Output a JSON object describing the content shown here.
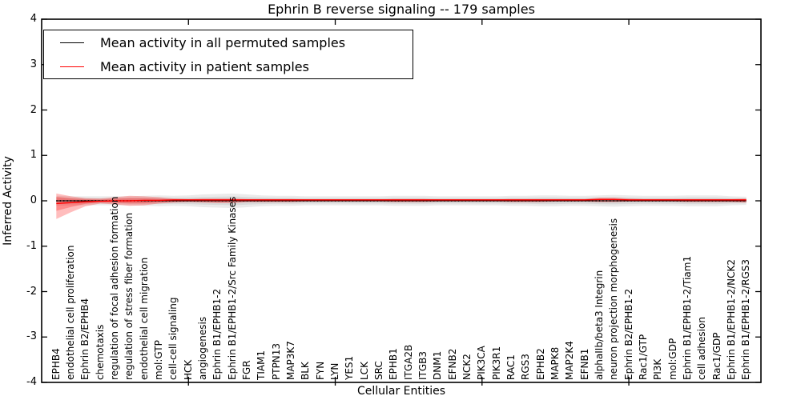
{
  "chart_data": {
    "type": "line",
    "title": "Ephrin B reverse signaling -- 179 samples",
    "xlabel": "Cellular Entities",
    "ylabel": "Inferred Activity",
    "ylim": [
      -4,
      4
    ],
    "xlim_units": [
      0,
      49
    ],
    "grid": false,
    "legend_position": "upper left",
    "y_ticks": [
      4,
      3,
      2,
      1,
      0,
      -1,
      -2,
      -3,
      -4
    ],
    "y_tick_labels": [
      "4",
      "3",
      "2",
      "1",
      "0",
      "-1",
      "-2",
      "-3",
      "-4"
    ],
    "x_major_ticks_units": [
      10,
      20,
      30,
      40
    ],
    "categories": [
      "EPHB4",
      "endothelial cell proliferation",
      "Ephrin B2/EPHB4",
      "chemotaxis",
      "regulation of focal adhesion formation",
      "regulation of stress fiber formation",
      "endothelial cell migration",
      "mol:GTP",
      "cell-cell signaling",
      "HCK",
      "angiogenesis",
      "Ephrin B1/EPHB1-2",
      "Ephrin B1/EPHB1-2/Src Family Kinases",
      "FGR",
      "TIAM1",
      "PTPN13",
      "MAP3K7",
      "BLK",
      "FYN",
      "LYN",
      "YES1",
      "LCK",
      "SRC",
      "EPHB1",
      "ITGA2B",
      "ITGB3",
      "DNM1",
      "EFNB2",
      "NCK2",
      "PIK3CA",
      "PIK3R1",
      "RAC1",
      "RGS3",
      "EPHB2",
      "MAPK8",
      "MAP2K4",
      "EFNB1",
      "alphaIIb/beta3 Integrin",
      "neuron projection morphogenesis",
      "Ephrin B2/EPHB1-2",
      "Rac1/GTP",
      "PI3K",
      "mol:GDP",
      "Ephrin B1/EPHB1-2/Tiam1",
      "cell adhesion",
      "Rac1/GDP",
      "Ephrin B1/EPHB1-2/NCK2",
      "Ephrin B1/EPHB1-2/RGS3"
    ],
    "series": [
      {
        "name": "Mean activity in all permuted samples",
        "color": "#000000",
        "band_color": "#999999",
        "values": [
          0,
          0,
          0,
          0,
          0,
          0,
          0,
          0,
          0,
          0,
          0,
          0,
          0,
          0,
          0,
          0,
          0,
          0,
          0,
          0,
          0,
          0,
          0,
          0,
          0,
          0,
          0,
          0,
          0,
          0,
          0,
          0,
          0,
          0,
          0,
          0,
          0,
          0,
          0,
          0,
          0,
          0,
          0,
          0,
          0,
          0,
          0,
          0
        ],
        "band_upper": [
          0.11,
          0.1,
          0.1,
          0.1,
          0.1,
          0.1,
          0.11,
          0.12,
          0.11,
          0.12,
          0.14,
          0.15,
          0.16,
          0.14,
          0.12,
          0.11,
          0.11,
          0.1,
          0.1,
          0.1,
          0.1,
          0.1,
          0.1,
          0.11,
          0.11,
          0.11,
          0.1,
          0.1,
          0.1,
          0.1,
          0.1,
          0.11,
          0.11,
          0.12,
          0.12,
          0.11,
          0.11,
          0.12,
          0.13,
          0.12,
          0.11,
          0.11,
          0.11,
          0.12,
          0.12,
          0.12,
          0.1,
          0.09
        ],
        "band_lower": [
          -0.11,
          -0.1,
          -0.1,
          -0.1,
          -0.1,
          -0.1,
          -0.11,
          -0.12,
          -0.11,
          -0.12,
          -0.14,
          -0.15,
          -0.16,
          -0.14,
          -0.12,
          -0.11,
          -0.11,
          -0.1,
          -0.1,
          -0.1,
          -0.1,
          -0.1,
          -0.1,
          -0.11,
          -0.11,
          -0.11,
          -0.1,
          -0.1,
          -0.1,
          -0.1,
          -0.1,
          -0.11,
          -0.11,
          -0.12,
          -0.12,
          -0.11,
          -0.11,
          -0.12,
          -0.13,
          -0.12,
          -0.11,
          -0.11,
          -0.11,
          -0.12,
          -0.12,
          -0.12,
          -0.1,
          -0.09
        ]
      },
      {
        "name": "Mean activity in patient samples",
        "color": "#ff0000",
        "band_color": "#ff0000",
        "values": [
          -0.06,
          -0.04,
          -0.02,
          -0.01,
          0.0,
          0.0,
          0.01,
          0.01,
          0.02,
          0.02,
          0.02,
          0.02,
          0.02,
          0.02,
          0.02,
          0.02,
          0.02,
          0.02,
          0.02,
          0.02,
          0.02,
          0.02,
          0.02,
          0.02,
          0.02,
          0.02,
          0.02,
          0.02,
          0.02,
          0.02,
          0.02,
          0.02,
          0.02,
          0.02,
          0.02,
          0.02,
          0.02,
          0.03,
          0.03,
          0.02,
          0.02,
          0.02,
          0.02,
          0.02,
          0.02,
          0.02,
          0.02,
          0.02
        ],
        "band_upper": [
          0.16,
          0.1,
          0.06,
          0.05,
          0.08,
          0.11,
          0.1,
          0.08,
          0.05,
          0.04,
          0.05,
          0.05,
          0.05,
          0.04,
          0.04,
          0.04,
          0.04,
          0.03,
          0.03,
          0.03,
          0.03,
          0.03,
          0.03,
          0.04,
          0.04,
          0.04,
          0.03,
          0.03,
          0.03,
          0.03,
          0.03,
          0.04,
          0.04,
          0.04,
          0.04,
          0.04,
          0.04,
          0.07,
          0.07,
          0.05,
          0.04,
          0.04,
          0.04,
          0.04,
          0.04,
          0.04,
          0.04,
          0.05
        ],
        "band_lower": [
          -0.4,
          -0.25,
          -0.12,
          -0.06,
          -0.08,
          -0.11,
          -0.1,
          -0.06,
          -0.04,
          -0.03,
          -0.04,
          -0.05,
          -0.05,
          -0.03,
          -0.03,
          -0.03,
          -0.03,
          -0.02,
          -0.02,
          -0.02,
          -0.02,
          -0.02,
          -0.02,
          -0.03,
          -0.03,
          -0.03,
          -0.02,
          -0.02,
          -0.02,
          -0.02,
          -0.02,
          -0.03,
          -0.03,
          -0.03,
          -0.02,
          -0.02,
          -0.02,
          -0.03,
          -0.03,
          -0.02,
          -0.02,
          -0.02,
          -0.02,
          -0.03,
          -0.03,
          -0.03,
          -0.03,
          -0.04
        ]
      }
    ],
    "legend": [
      {
        "label": "Mean activity in all permuted samples"
      },
      {
        "label": "Mean activity in patient samples"
      }
    ]
  }
}
